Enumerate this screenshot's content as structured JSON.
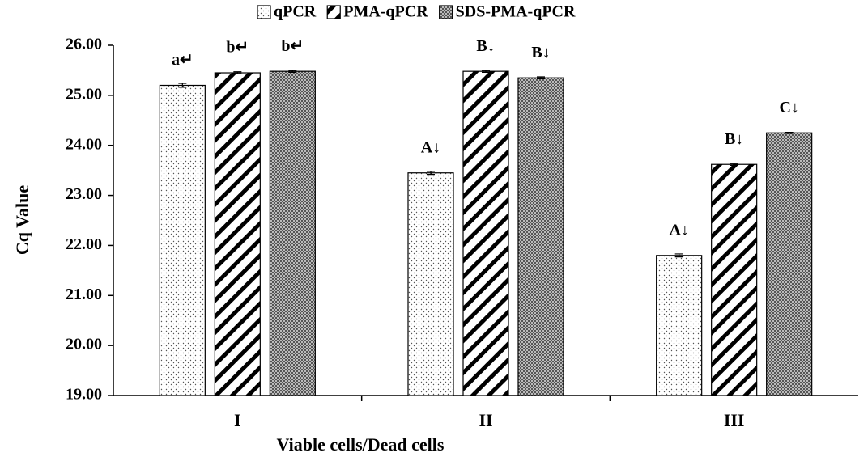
{
  "chart_data": {
    "type": "bar",
    "x_label": "Viable cells/Dead cells",
    "y_label": "Cq Value",
    "categories": [
      "I",
      "II",
      "III"
    ],
    "series": [
      {
        "name": "qPCR",
        "pattern": "dots",
        "values": [
          25.2,
          23.45,
          21.8
        ],
        "errors": [
          0.04,
          0.03,
          0.03
        ],
        "annotations": [
          "a↵",
          "A↓",
          "A↓"
        ]
      },
      {
        "name": "PMA-qPCR",
        "pattern": "stripes",
        "values": [
          25.45,
          25.48,
          23.62
        ],
        "errors": [
          0.02,
          0.02,
          0.02
        ],
        "annotations": [
          "b↵",
          "B↓",
          "B↓"
        ]
      },
      {
        "name": "SDS-PMA-qPCR",
        "pattern": "crosshatch",
        "values": [
          25.48,
          25.35,
          24.25
        ],
        "errors": [
          0.02,
          0.02,
          0.01
        ],
        "annotations": [
          "b↵",
          "B↓",
          "C↓"
        ]
      }
    ],
    "ylim": [
      19,
      26
    ],
    "yticks": [
      {
        "value": 19,
        "label": "19.00"
      },
      {
        "value": 20,
        "label": "20.00"
      },
      {
        "value": 21,
        "label": "21.00"
      },
      {
        "value": 22,
        "label": "22.00"
      },
      {
        "value": 23,
        "label": "23.00"
      },
      {
        "value": 24,
        "label": "24.00"
      },
      {
        "value": 25,
        "label": "25.00"
      },
      {
        "value": 26,
        "label": "26.00"
      }
    ],
    "legend": "top"
  }
}
